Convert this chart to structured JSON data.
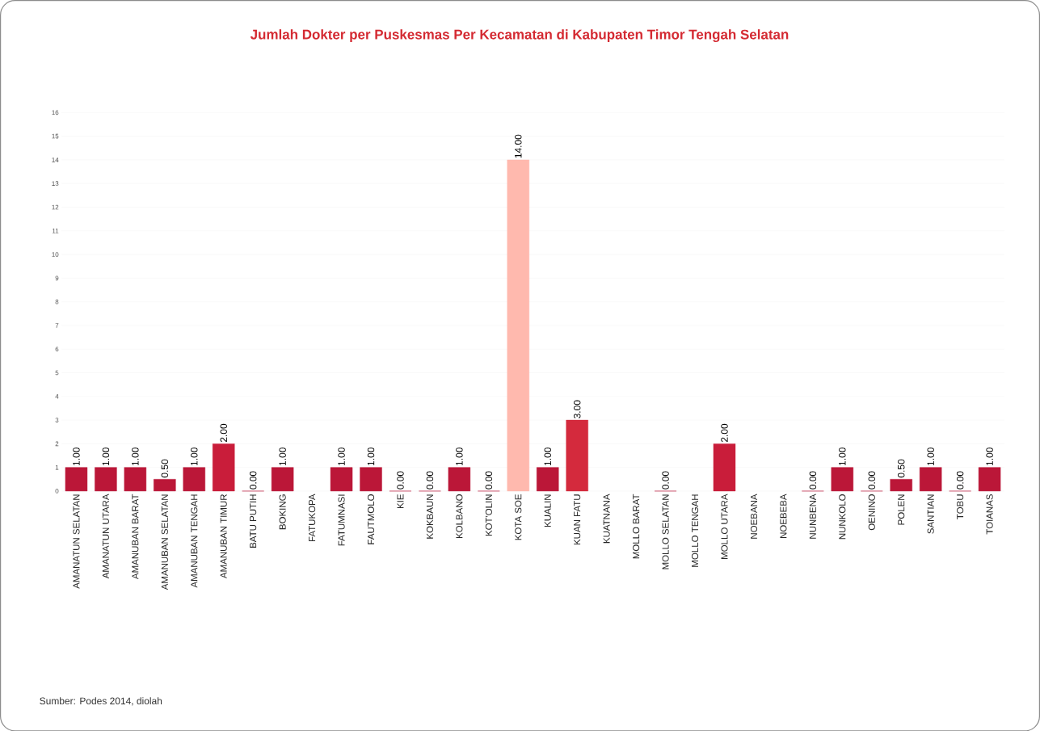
{
  "chart_data": {
    "type": "bar",
    "title": "Jumlah Dokter per Puskesmas Per Kecamatan di Kabupaten Timor Tengah Selatan",
    "categories": [
      "AMANATUN SELATAN",
      "AMANATUN UTARA",
      "AMANUBAN BARAT",
      "AMANUBAN SELATAN",
      "AMANUBAN TENGAH",
      "AMANUBAN TIMUR",
      "BATU PUTIH",
      "BOKING",
      "FATUKOPA",
      "FATUMNASI",
      "FAUTMOLO",
      "KIE",
      "KOKBAUN",
      "KOLBANO",
      "KOT'OLIN",
      "KOTA SOE",
      "KUALIN",
      "KUAN FATU",
      "KUATNANA",
      "MOLLO BARAT",
      "MOLLO SELATAN",
      "MOLLO TENGAH",
      "MOLLO UTARA",
      "NOEBANA",
      "NOEBEBA",
      "NUNBENA",
      "NUNKOLO",
      "OENINO",
      "POLEN",
      "SANTIAN",
      "TOBU",
      "TOIANAS"
    ],
    "values": [
      1,
      1,
      1,
      0.5,
      1,
      2,
      0,
      1,
      null,
      1,
      1,
      0,
      0,
      1,
      0,
      14,
      1,
      3,
      null,
      null,
      0,
      null,
      2,
      null,
      null,
      0,
      1,
      0,
      0.5,
      1,
      0,
      1
    ],
    "value_labels": [
      "1.00",
      "1.00",
      "1.00",
      "0.50",
      "1.00",
      "2.00",
      "0.00",
      "1.00",
      null,
      "1.00",
      "1.00",
      "0.00",
      "0.00",
      "1.00",
      "0.00",
      "14.00",
      "1.00",
      "3.00",
      null,
      null,
      "0.00",
      null,
      "2.00",
      null,
      null,
      "0.00",
      "1.00",
      "0.00",
      "0.50",
      "1.00",
      "0.00",
      "1.00"
    ],
    "colors": [
      "#bb1738",
      "#bb1738",
      "#bb1738",
      "#bb1738",
      "#bb1738",
      "#c91d3a",
      "#bb1738",
      "#bb1738",
      "#bb1738",
      "#bb1738",
      "#bb1738",
      "#bb1738",
      "#bb1738",
      "#bb1738",
      "#bb1738",
      "#ffb9ae",
      "#bb1738",
      "#d42a3d",
      "#bb1738",
      "#bb1738",
      "#bb1738",
      "#bb1738",
      "#c91d3a",
      "#bb1738",
      "#bb1738",
      "#bb1738",
      "#bb1738",
      "#bb1738",
      "#bb1738",
      "#bb1738",
      "#bb1738",
      "#bb1738"
    ],
    "ylim": [
      0,
      16
    ],
    "yticks": [
      0,
      1,
      2,
      3,
      4,
      5,
      6,
      7,
      8,
      9,
      10,
      11,
      12,
      13,
      14,
      15,
      16
    ],
    "grid": "y",
    "annotations": [
      "Sumber: Podes 2014, diolah"
    ]
  }
}
